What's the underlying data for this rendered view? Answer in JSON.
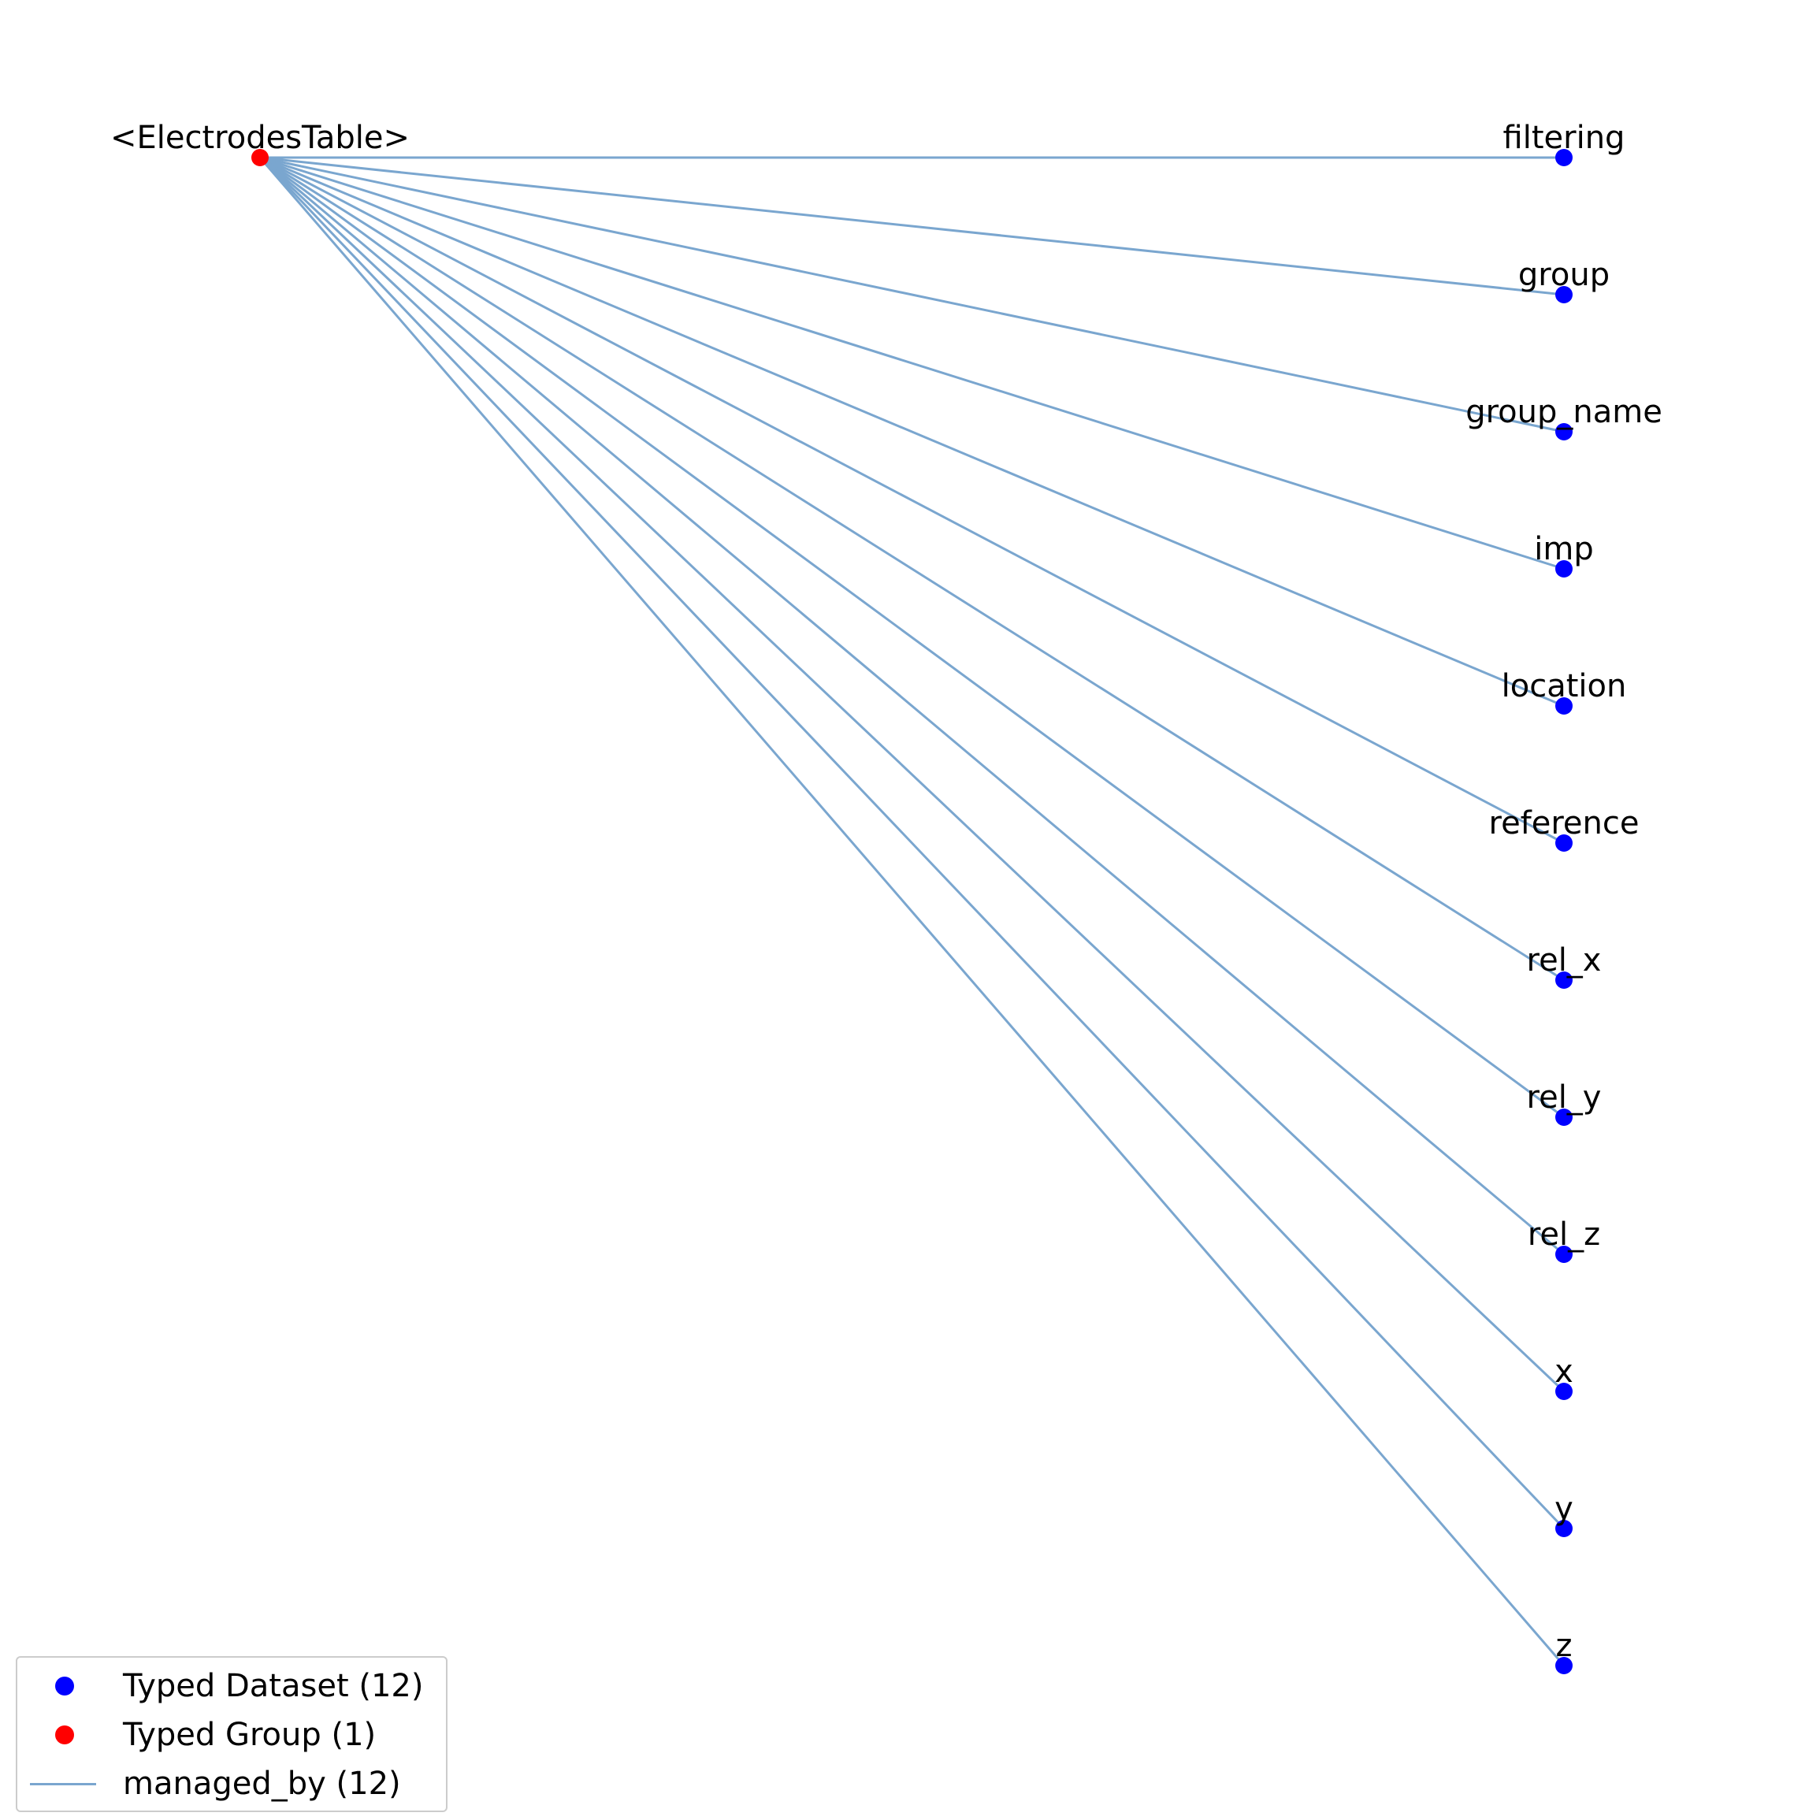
{
  "colors": {
    "typed_dataset": "#0000ff",
    "typed_group": "#ff0000",
    "managed_by": "#7aa6cf"
  },
  "root": {
    "label": "<ElectrodesTable>",
    "kind": "typed_group"
  },
  "nodes": [
    {
      "label": "filtering"
    },
    {
      "label": "group"
    },
    {
      "label": "group_name"
    },
    {
      "label": "imp"
    },
    {
      "label": "location"
    },
    {
      "label": "reference"
    },
    {
      "label": "rel_x"
    },
    {
      "label": "rel_y"
    },
    {
      "label": "rel_z"
    },
    {
      "label": "x"
    },
    {
      "label": "y"
    },
    {
      "label": "z"
    }
  ],
  "edges": {
    "type": "managed_by",
    "from": "<ElectrodesTable>",
    "to": [
      "filtering",
      "group",
      "group_name",
      "imp",
      "location",
      "reference",
      "rel_x",
      "rel_y",
      "rel_z",
      "x",
      "y",
      "z"
    ]
  },
  "legend": {
    "entries": [
      {
        "label": "Typed Dataset (12)",
        "marker": "dot",
        "color_key": "typed_dataset"
      },
      {
        "label": "Typed Group (1)",
        "marker": "dot",
        "color_key": "typed_group"
      },
      {
        "label": "managed_by (12)",
        "marker": "line",
        "color_key": "managed_by"
      }
    ]
  }
}
